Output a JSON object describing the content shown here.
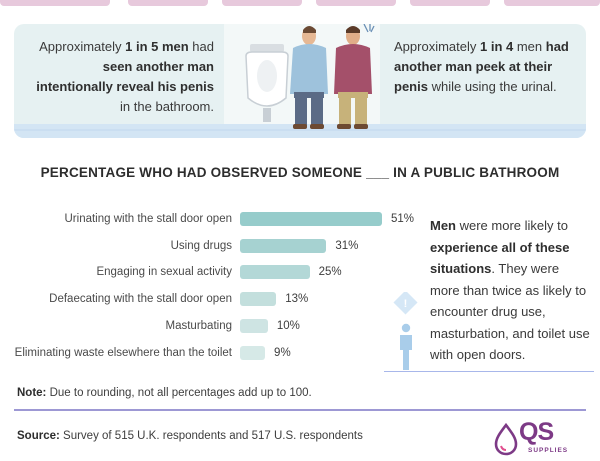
{
  "panel": {
    "left_stat": "1 in 5 men",
    "left_pre": "Approximately ",
    "left_post": " had",
    "left_bold": "seen another man intentionally reveal his penis",
    "left_end": " in the bathroom.",
    "right_pre": "Approximately ",
    "right_stat": "1 in 4",
    "right_post": " men",
    "right_bold": "had another man peek at their penis",
    "right_end": " while using the urinal."
  },
  "chart_data": {
    "type": "bar",
    "orientation": "horizontal",
    "title": "PERCENTAGE WHO HAD OBSERVED SOMEONE ___ IN A PUBLIC BATHROOM",
    "categories": [
      "Urinating with the stall door open",
      "Using drugs",
      "Engaging in sexual activity",
      "Defaecating with the stall door open",
      "Masturbating",
      "Eliminating waste elsewhere than the toilet"
    ],
    "values": [
      51,
      31,
      25,
      13,
      10,
      9
    ],
    "value_labels": [
      "51%",
      "31%",
      "25%",
      "13%",
      "10%",
      "9%"
    ],
    "xlim": [
      0,
      100
    ],
    "xlabel": "",
    "ylabel": "",
    "colors": [
      "#96cccb",
      "#a6d2d1",
      "#b3d8d7",
      "#c3dfdd",
      "#cee4e3",
      "#d6e9e7"
    ]
  },
  "side_note": {
    "bold1": "Men",
    "text1": " were more likely to ",
    "bold2": "experience all of these situations",
    "text2": ". They were more than twice as likely to encounter drug use, masturbation, and toilet use with open doors."
  },
  "footnote": {
    "label": "Note:",
    "text": " Due to rounding, not all percentages add up to 100."
  },
  "source": {
    "label": "Source:",
    "text": " Survey of 515 U.K. respondents and 517 U.S. respondents"
  },
  "logo": {
    "text": "QS",
    "sub": "SUPPLIES"
  },
  "colors": {
    "accent": "#7d3a86",
    "panel_bg": "#e6f1f2",
    "divider": "#9d98d4"
  }
}
